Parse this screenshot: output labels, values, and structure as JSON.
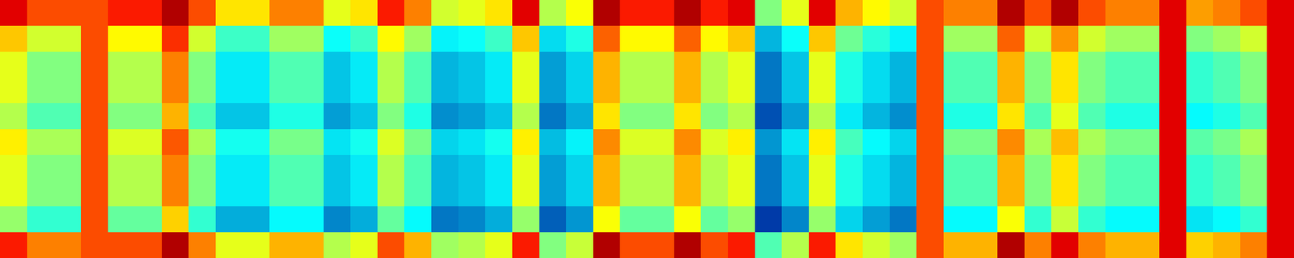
{
  "chart_data": {
    "type": "heatmap",
    "tick_labels": false,
    "zlim": [
      0,
      1
    ],
    "cells": [
      [
        0.9,
        0.8,
        0.8,
        0.8,
        0.85,
        0.85,
        0.95,
        0.8,
        0.65,
        0.65,
        0.75,
        0.75,
        0.6,
        0.65,
        0.85,
        0.75,
        0.58,
        0.6,
        0.65,
        0.9,
        0.55,
        0.62,
        0.95,
        0.85,
        0.85,
        0.95,
        0.85,
        0.9,
        0.5,
        0.6,
        0.9,
        0.7,
        0.63,
        0.58,
        0.8,
        0.75,
        0.75,
        0.95,
        0.8,
        0.95,
        0.8,
        0.75,
        0.75,
        0.9,
        0.72,
        0.75,
        0.8,
        0.9
      ],
      [
        0.68,
        0.58,
        0.58,
        0.8,
        0.63,
        0.63,
        0.83,
        0.58,
        0.43,
        0.43,
        0.53,
        0.53,
        0.38,
        0.43,
        0.63,
        0.53,
        0.36,
        0.38,
        0.43,
        0.68,
        0.33,
        0.4,
        0.78,
        0.63,
        0.63,
        0.78,
        0.63,
        0.68,
        0.28,
        0.38,
        0.68,
        0.48,
        0.41,
        0.36,
        0.8,
        0.53,
        0.53,
        0.78,
        0.58,
        0.73,
        0.58,
        0.53,
        0.53,
        0.9,
        0.5,
        0.53,
        0.58,
        0.9
      ],
      [
        0.6,
        0.5,
        0.5,
        0.8,
        0.55,
        0.55,
        0.75,
        0.5,
        0.35,
        0.35,
        0.45,
        0.45,
        0.3,
        0.35,
        0.55,
        0.45,
        0.28,
        0.3,
        0.35,
        0.6,
        0.25,
        0.32,
        0.7,
        0.55,
        0.55,
        0.7,
        0.55,
        0.6,
        0.2,
        0.3,
        0.6,
        0.4,
        0.33,
        0.28,
        0.8,
        0.45,
        0.45,
        0.7,
        0.5,
        0.65,
        0.5,
        0.45,
        0.45,
        0.9,
        0.42,
        0.45,
        0.5,
        0.9
      ],
      [
        0.6,
        0.5,
        0.5,
        0.8,
        0.55,
        0.55,
        0.75,
        0.5,
        0.35,
        0.35,
        0.45,
        0.45,
        0.3,
        0.35,
        0.55,
        0.45,
        0.28,
        0.3,
        0.35,
        0.6,
        0.25,
        0.32,
        0.7,
        0.55,
        0.55,
        0.7,
        0.55,
        0.6,
        0.2,
        0.3,
        0.6,
        0.4,
        0.33,
        0.28,
        0.8,
        0.45,
        0.45,
        0.7,
        0.5,
        0.65,
        0.5,
        0.45,
        0.45,
        0.9,
        0.42,
        0.45,
        0.5,
        0.9
      ],
      [
        0.55,
        0.45,
        0.45,
        0.8,
        0.5,
        0.5,
        0.7,
        0.45,
        0.3,
        0.3,
        0.4,
        0.4,
        0.25,
        0.3,
        0.5,
        0.4,
        0.23,
        0.25,
        0.3,
        0.55,
        0.2,
        0.27,
        0.65,
        0.5,
        0.5,
        0.65,
        0.5,
        0.55,
        0.15,
        0.25,
        0.55,
        0.35,
        0.28,
        0.23,
        0.8,
        0.4,
        0.4,
        0.65,
        0.45,
        0.6,
        0.45,
        0.4,
        0.4,
        0.9,
        0.37,
        0.4,
        0.45,
        0.9
      ],
      [
        0.64,
        0.54,
        0.54,
        0.8,
        0.59,
        0.59,
        0.79,
        0.54,
        0.39,
        0.39,
        0.49,
        0.49,
        0.34,
        0.39,
        0.59,
        0.49,
        0.32,
        0.34,
        0.39,
        0.64,
        0.29,
        0.36,
        0.74,
        0.59,
        0.59,
        0.74,
        0.59,
        0.64,
        0.24,
        0.34,
        0.64,
        0.44,
        0.37,
        0.32,
        0.8,
        0.49,
        0.49,
        0.74,
        0.54,
        0.69,
        0.54,
        0.49,
        0.49,
        0.9,
        0.46,
        0.49,
        0.54,
        0.9
      ],
      [
        0.6,
        0.5,
        0.5,
        0.8,
        0.55,
        0.55,
        0.75,
        0.5,
        0.35,
        0.35,
        0.45,
        0.45,
        0.3,
        0.35,
        0.55,
        0.45,
        0.28,
        0.3,
        0.35,
        0.6,
        0.25,
        0.32,
        0.7,
        0.55,
        0.55,
        0.7,
        0.55,
        0.6,
        0.2,
        0.3,
        0.6,
        0.4,
        0.33,
        0.28,
        0.8,
        0.45,
        0.45,
        0.7,
        0.5,
        0.65,
        0.5,
        0.45,
        0.45,
        0.9,
        0.42,
        0.45,
        0.5,
        0.9
      ],
      [
        0.6,
        0.5,
        0.5,
        0.8,
        0.55,
        0.55,
        0.75,
        0.5,
        0.35,
        0.35,
        0.45,
        0.45,
        0.3,
        0.35,
        0.55,
        0.45,
        0.28,
        0.3,
        0.35,
        0.6,
        0.25,
        0.32,
        0.7,
        0.55,
        0.55,
        0.7,
        0.55,
        0.6,
        0.2,
        0.3,
        0.6,
        0.4,
        0.33,
        0.28,
        0.8,
        0.45,
        0.45,
        0.7,
        0.5,
        0.65,
        0.5,
        0.45,
        0.45,
        0.9,
        0.42,
        0.45,
        0.5,
        0.9
      ],
      [
        0.52,
        0.42,
        0.42,
        0.8,
        0.47,
        0.47,
        0.67,
        0.42,
        0.27,
        0.27,
        0.37,
        0.37,
        0.22,
        0.27,
        0.47,
        0.37,
        0.2,
        0.22,
        0.27,
        0.52,
        0.17,
        0.24,
        0.62,
        0.47,
        0.47,
        0.62,
        0.47,
        0.52,
        0.12,
        0.22,
        0.52,
        0.32,
        0.25,
        0.2,
        0.8,
        0.37,
        0.37,
        0.62,
        0.42,
        0.57,
        0.42,
        0.37,
        0.37,
        0.9,
        0.34,
        0.37,
        0.42,
        0.9
      ],
      [
        0.85,
        0.75,
        0.75,
        0.8,
        0.8,
        0.8,
        0.95,
        0.75,
        0.6,
        0.6,
        0.7,
        0.7,
        0.55,
        0.6,
        0.8,
        0.7,
        0.53,
        0.55,
        0.6,
        0.85,
        0.5,
        0.57,
        0.95,
        0.8,
        0.8,
        0.95,
        0.8,
        0.85,
        0.45,
        0.55,
        0.85,
        0.65,
        0.58,
        0.53,
        0.8,
        0.7,
        0.7,
        0.95,
        0.75,
        0.9,
        0.75,
        0.7,
        0.7,
        0.9,
        0.67,
        0.7,
        0.75,
        0.9
      ]
    ]
  }
}
